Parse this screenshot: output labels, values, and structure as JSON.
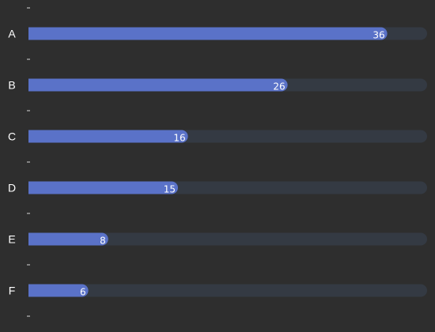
{
  "chart_data": {
    "type": "bar",
    "orientation": "horizontal",
    "categories": [
      "A",
      "B",
      "C",
      "D",
      "E",
      "F"
    ],
    "values": [
      36,
      26,
      16,
      15,
      8,
      6
    ],
    "xlim": [
      0,
      40
    ],
    "grid": false,
    "legend": "none",
    "data_labels": true,
    "colors": {
      "background": "#2e2e2e",
      "bar": "#5a72c8",
      "track": "#343a43",
      "text": "#ffffff",
      "tick": "#d8d8d8"
    }
  }
}
